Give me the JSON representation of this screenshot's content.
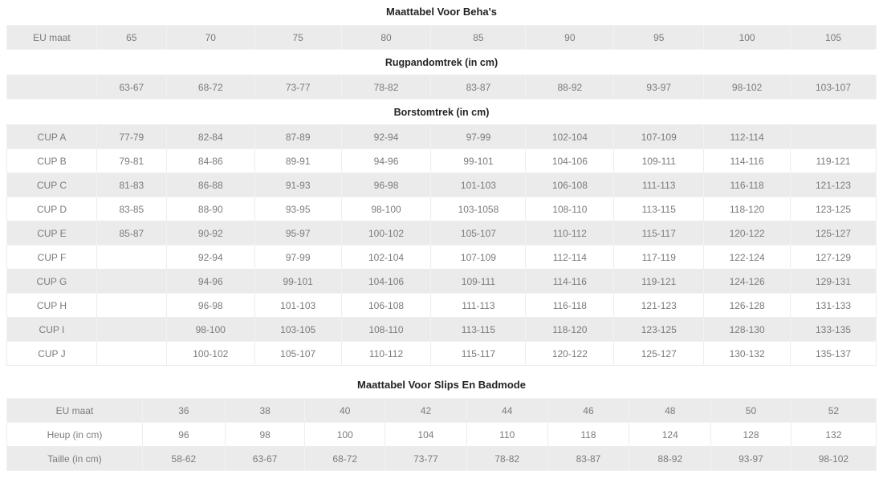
{
  "colors": {
    "stripe_background": "#ebebeb",
    "cell_border": "#ededed",
    "cell_text": "#7b7b7b",
    "heading_text": "#232323",
    "page_background": "#ffffff"
  },
  "bra_table": {
    "title": "Maattabel Voor Beha's",
    "header": [
      "EU maat",
      "65",
      "70",
      "75",
      "80",
      "85",
      "90",
      "95",
      "100",
      "105"
    ],
    "sections": [
      {
        "label": "Rugpandomtrek (in cm)",
        "rows": [
          [
            "",
            "63-67",
            "68-72",
            "73-77",
            "78-82",
            "83-87",
            "88-92",
            "93-97",
            "98-102",
            "103-107"
          ]
        ]
      },
      {
        "label": "Borstomtrek (in cm)",
        "rows": [
          [
            "CUP A",
            "77-79",
            "82-84",
            "87-89",
            "92-94",
            "97-99",
            "102-104",
            "107-109",
            "112-114",
            ""
          ],
          [
            "CUP B",
            "79-81",
            "84-86",
            "89-91",
            "94-96",
            "99-101",
            "104-106",
            "109-111",
            "114-116",
            "119-121"
          ],
          [
            "CUP C",
            "81-83",
            "86-88",
            "91-93",
            "96-98",
            "101-103",
            "106-108",
            "111-113",
            "116-118",
            "121-123"
          ],
          [
            "CUP D",
            "83-85",
            "88-90",
            "93-95",
            "98-100",
            "103-1058",
            "108-110",
            "113-115",
            "118-120",
            "123-125"
          ],
          [
            "CUP E",
            "85-87",
            "90-92",
            "95-97",
            "100-102",
            "105-107",
            "110-112",
            "115-117",
            "120-122",
            "125-127"
          ],
          [
            "CUP F",
            "",
            "92-94",
            "97-99",
            "102-104",
            "107-109",
            "112-114",
            "117-119",
            "122-124",
            "127-129"
          ],
          [
            "CUP G",
            "",
            "94-96",
            "99-101",
            "104-106",
            "109-111",
            "114-116",
            "119-121",
            "124-126",
            "129-131"
          ],
          [
            "CUP H",
            "",
            "96-98",
            "101-103",
            "106-108",
            "111-113",
            "116-118",
            "121-123",
            "126-128",
            "131-133"
          ],
          [
            "CUP I",
            "",
            "98-100",
            "103-105",
            "108-110",
            "113-115",
            "118-120",
            "123-125",
            "128-130",
            "133-135"
          ],
          [
            "CUP J",
            "",
            "100-102",
            "105-107",
            "110-112",
            "115-117",
            "120-122",
            "125-127",
            "130-132",
            "135-137"
          ]
        ]
      }
    ]
  },
  "swim_table": {
    "title": "Maattabel Voor Slips En Badmode",
    "rows": [
      [
        "EU maat",
        "36",
        "38",
        "40",
        "42",
        "44",
        "46",
        "48",
        "50",
        "52"
      ],
      [
        "Heup (in cm)",
        "96",
        "98",
        "100",
        "104",
        "110",
        "118",
        "124",
        "128",
        "132"
      ],
      [
        "Taille (in cm)",
        "58-62",
        "63-67",
        "68-72",
        "73-77",
        "78-82",
        "83-87",
        "88-92",
        "93-97",
        "98-102"
      ]
    ]
  }
}
